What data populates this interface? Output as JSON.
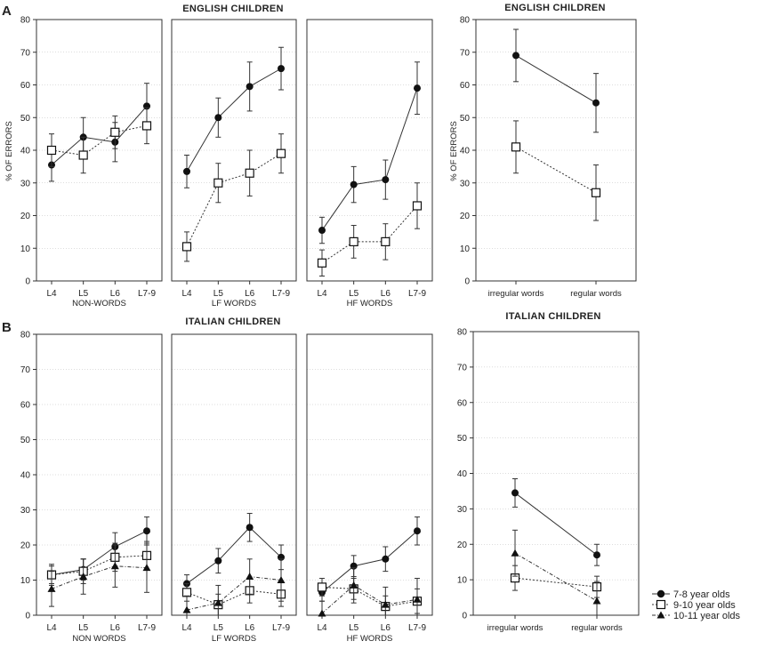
{
  "figure": {
    "panel_a_label": "A",
    "panel_b_label": "B",
    "row_a_title": "ENGLISH CHILDREN",
    "row_b_title": "ITALIAN CHILDREN",
    "side_a_title": "ENGLISH CHILDREN",
    "side_b_title": "ITALIAN CHILDREN",
    "y_label": "% OF ERRORS",
    "legend": [
      "7-8 year olds",
      "9-10 year olds",
      "10-11 year olds"
    ]
  },
  "chart_data": [
    {
      "type": "line",
      "panel": "A",
      "title": "ENGLISH CHILDREN",
      "xlabel": "NON-WORDS",
      "ylabel": "% OF ERRORS",
      "categories": [
        "L4",
        "L5",
        "L6",
        "L7-9"
      ],
      "ylim": [
        0,
        80
      ],
      "yticks": [
        0,
        10,
        20,
        30,
        40,
        50,
        60,
        70,
        80
      ],
      "series": [
        {
          "name": "7-8 year olds",
          "marker": "circle",
          "values": [
            35.5,
            44,
            42.5,
            53.5
          ],
          "err": [
            5,
            6,
            6,
            7
          ]
        },
        {
          "name": "9-10 year olds",
          "marker": "square",
          "values": [
            40,
            38.5,
            45.5,
            47.5
          ],
          "err": [
            5,
            5.5,
            5,
            5.5
          ]
        }
      ]
    },
    {
      "type": "line",
      "panel": "A",
      "xlabel": "LF WORDS",
      "categories": [
        "L4",
        "L5",
        "L6",
        "L7-9"
      ],
      "ylim": [
        0,
        80
      ],
      "series": [
        {
          "name": "7-8 year olds",
          "marker": "circle",
          "values": [
            33.5,
            50,
            59.5,
            65
          ],
          "err": [
            5,
            6,
            7.5,
            6.5
          ]
        },
        {
          "name": "9-10 year olds",
          "marker": "square",
          "values": [
            10.5,
            30,
            33,
            39
          ],
          "err": [
            4.5,
            6,
            7,
            6
          ]
        }
      ]
    },
    {
      "type": "line",
      "panel": "A",
      "xlabel": "HF WORDS",
      "categories": [
        "L4",
        "L5",
        "L6",
        "L7-9"
      ],
      "ylim": [
        0,
        80
      ],
      "series": [
        {
          "name": "7-8 year olds",
          "marker": "circle",
          "values": [
            15.5,
            29.5,
            31,
            59
          ],
          "err": [
            4,
            5.5,
            6,
            8
          ]
        },
        {
          "name": "9-10 year olds",
          "marker": "square",
          "values": [
            5.5,
            12,
            12,
            23
          ],
          "err": [
            4,
            5,
            5.5,
            7
          ]
        }
      ]
    },
    {
      "type": "line",
      "panel": "A",
      "title": "ENGLISH CHILDREN",
      "ylabel": "% OF ERRORS",
      "categories": [
        "irregular words",
        "regular words"
      ],
      "ylim": [
        0,
        80
      ],
      "yticks": [
        0,
        10,
        20,
        30,
        40,
        50,
        60,
        70,
        80
      ],
      "series": [
        {
          "name": "7-8 year olds",
          "marker": "circle",
          "values": [
            69,
            54.5
          ],
          "err": [
            8,
            9
          ]
        },
        {
          "name": "9-10 year olds",
          "marker": "square",
          "values": [
            41,
            27
          ],
          "err": [
            8,
            8.5
          ]
        }
      ]
    },
    {
      "type": "line",
      "panel": "B",
      "title": "ITALIAN CHILDREN",
      "xlabel": "NON WORDS",
      "categories": [
        "L4",
        "L5",
        "L6",
        "L7-9"
      ],
      "ylim": [
        0,
        80
      ],
      "yticks": [
        0,
        10,
        20,
        30,
        40,
        50,
        60,
        70,
        80
      ],
      "series": [
        {
          "name": "7-8 year olds",
          "marker": "circle",
          "values": [
            11.5,
            13,
            19.5,
            24
          ],
          "err": [
            2.5,
            3,
            4,
            4
          ]
        },
        {
          "name": "9-10 year olds",
          "marker": "square",
          "values": [
            11.5,
            12.5,
            16.5,
            17
          ],
          "err": [
            3,
            3.5,
            4,
            4
          ]
        },
        {
          "name": "10-11 year olds",
          "marker": "triangle",
          "values": [
            7.5,
            11,
            14,
            13.5
          ],
          "err": [
            5,
            5,
            6,
            7
          ]
        }
      ]
    },
    {
      "type": "line",
      "panel": "B",
      "xlabel": "LF WORDS",
      "categories": [
        "L4",
        "L5",
        "L6",
        "L7-9"
      ],
      "ylim": [
        0,
        80
      ],
      "series": [
        {
          "name": "7-8 year olds",
          "marker": "circle",
          "values": [
            9,
            15.5,
            25,
            16.5
          ],
          "err": [
            2.5,
            3.5,
            4,
            3.5
          ]
        },
        {
          "name": "9-10 year olds",
          "marker": "square",
          "values": [
            6.5,
            3,
            7,
            6
          ],
          "err": [
            2.5,
            3,
            3.5,
            3.5
          ]
        },
        {
          "name": "10-11 year olds",
          "marker": "triangle",
          "values": [
            1.5,
            3.5,
            11,
            10
          ],
          "err": [
            4,
            5,
            5,
            6
          ]
        }
      ]
    },
    {
      "type": "line",
      "panel": "B",
      "xlabel": "HF WORDS",
      "categories": [
        "L4",
        "L5",
        "L6",
        "L7-9"
      ],
      "ylim": [
        0,
        80
      ],
      "series": [
        {
          "name": "7-8 year olds",
          "marker": "circle",
          "values": [
            6.5,
            14,
            16,
            24
          ],
          "err": [
            2.5,
            3,
            3.5,
            4
          ]
        },
        {
          "name": "9-10 year olds",
          "marker": "square",
          "values": [
            8,
            7.5,
            2.5,
            4
          ],
          "err": [
            2.5,
            3,
            3,
            3.5
          ]
        },
        {
          "name": "10-11 year olds",
          "marker": "triangle",
          "values": [
            0.5,
            8.5,
            3,
            4.5
          ],
          "err": [
            3.5,
            5,
            5,
            6
          ]
        }
      ]
    },
    {
      "type": "line",
      "panel": "B",
      "title": "ITALIAN CHILDREN",
      "categories": [
        "irregular words",
        "regular words"
      ],
      "ylim": [
        0,
        80
      ],
      "yticks": [
        0,
        10,
        20,
        30,
        40,
        50,
        60,
        70,
        80
      ],
      "series": [
        {
          "name": "7-8 year olds",
          "marker": "circle",
          "values": [
            34.5,
            17
          ],
          "err": [
            4,
            3
          ]
        },
        {
          "name": "9-10 year olds",
          "marker": "square",
          "values": [
            10.5,
            8
          ],
          "err": [
            3.5,
            3
          ]
        },
        {
          "name": "10-11 year olds",
          "marker": "triangle",
          "values": [
            17.5,
            4
          ],
          "err": [
            6.5,
            5.5
          ]
        }
      ]
    }
  ]
}
